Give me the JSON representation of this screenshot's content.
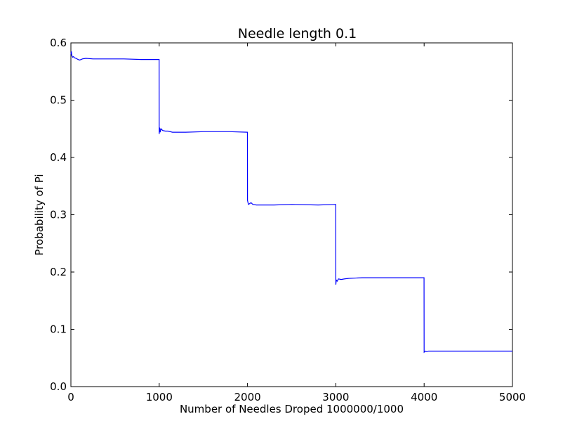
{
  "chart_data": {
    "type": "line",
    "title": "Needle length 0.1",
    "xlabel": "Number of Needles Droped 1000000/1000",
    "ylabel": "Probability of Pi",
    "xlim": [
      0,
      5000
    ],
    "ylim": [
      0.0,
      0.6
    ],
    "x_ticks": [
      0,
      1000,
      2000,
      3000,
      4000,
      5000
    ],
    "x_tick_labels": [
      "0",
      "1000",
      "2000",
      "3000",
      "4000",
      "5000"
    ],
    "y_ticks": [
      0.0,
      0.1,
      0.2,
      0.3,
      0.4,
      0.5,
      0.6
    ],
    "y_tick_labels": [
      "0.0",
      "0.1",
      "0.2",
      "0.3",
      "0.4",
      "0.5",
      "0.6"
    ],
    "grid": false,
    "legend": "none",
    "series": [
      {
        "color": "#0000ff",
        "points": [
          [
            0,
            0.58
          ],
          [
            5,
            0.585
          ],
          [
            10,
            0.578
          ],
          [
            20,
            0.575
          ],
          [
            30,
            0.576
          ],
          [
            40,
            0.574
          ],
          [
            60,
            0.573
          ],
          [
            80,
            0.571
          ],
          [
            100,
            0.57
          ],
          [
            130,
            0.572
          ],
          [
            170,
            0.573
          ],
          [
            250,
            0.572
          ],
          [
            400,
            0.572
          ],
          [
            600,
            0.572
          ],
          [
            800,
            0.571
          ],
          [
            999,
            0.571
          ],
          [
            1000,
            0.441
          ],
          [
            1005,
            0.452
          ],
          [
            1012,
            0.444
          ],
          [
            1020,
            0.45
          ],
          [
            1040,
            0.447
          ],
          [
            1070,
            0.446
          ],
          [
            1100,
            0.446
          ],
          [
            1150,
            0.444
          ],
          [
            1300,
            0.444
          ],
          [
            1500,
            0.445
          ],
          [
            1800,
            0.445
          ],
          [
            1999,
            0.444
          ],
          [
            2000,
            0.325
          ],
          [
            2010,
            0.318
          ],
          [
            2020,
            0.319
          ],
          [
            2040,
            0.321
          ],
          [
            2060,
            0.318
          ],
          [
            2100,
            0.317
          ],
          [
            2150,
            0.317
          ],
          [
            2300,
            0.317
          ],
          [
            2500,
            0.318
          ],
          [
            2800,
            0.317
          ],
          [
            2999,
            0.318
          ],
          [
            3000,
            0.178
          ],
          [
            3005,
            0.186
          ],
          [
            3015,
            0.184
          ],
          [
            3030,
            0.188
          ],
          [
            3060,
            0.187
          ],
          [
            3100,
            0.188
          ],
          [
            3150,
            0.189
          ],
          [
            3300,
            0.19
          ],
          [
            3600,
            0.19
          ],
          [
            3999,
            0.19
          ],
          [
            4000,
            0.06
          ],
          [
            4015,
            0.062
          ],
          [
            4030,
            0.061
          ],
          [
            4050,
            0.062
          ],
          [
            4100,
            0.062
          ],
          [
            4300,
            0.062
          ],
          [
            4600,
            0.062
          ],
          [
            5000,
            0.062
          ]
        ]
      }
    ]
  }
}
